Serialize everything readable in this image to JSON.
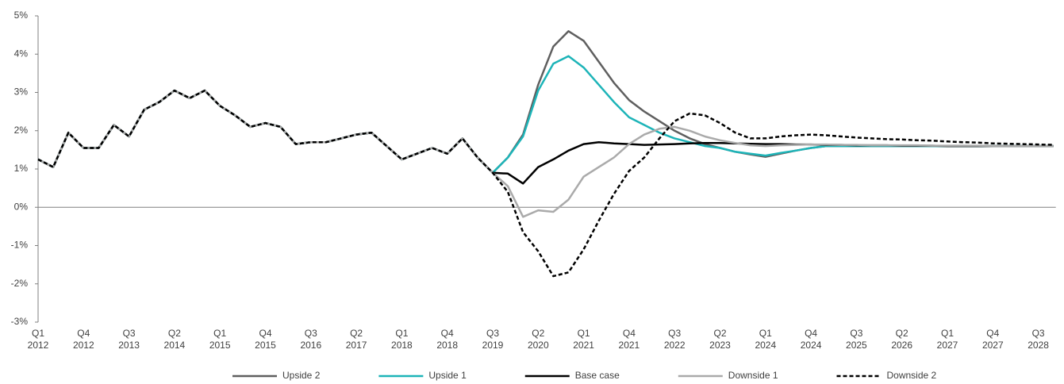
{
  "chart_data": {
    "type": "line",
    "categories": [
      "Q1 2012",
      null,
      null,
      "Q4 2012",
      null,
      null,
      "Q3 2013",
      null,
      null,
      "Q2 2014",
      null,
      null,
      "Q1 2015",
      null,
      null,
      "Q4 2015",
      null,
      null,
      "Q3 2016",
      null,
      null,
      "Q2 2017",
      null,
      null,
      "Q1 2018",
      null,
      null,
      "Q4 2018",
      null,
      null,
      "Q3 2019",
      null,
      null,
      "Q2 2020",
      null,
      null,
      "Q1 2021",
      null,
      null,
      "Q4 2021",
      null,
      null,
      "Q3 2022",
      null,
      null,
      "Q2 2023",
      null,
      null,
      "Q1 2024",
      null,
      null,
      "Q4 2024",
      null,
      null,
      "Q3 2025",
      null,
      null,
      "Q2 2026",
      null,
      null,
      "Q1 2027",
      null,
      null,
      "Q4 2027",
      null,
      null,
      "Q3 2028",
      null
    ],
    "ylim": [
      -3,
      5
    ],
    "yticks": [
      {
        "value": -3,
        "label": "-3%"
      },
      {
        "value": -2,
        "label": "-2%"
      },
      {
        "value": -1,
        "label": "-1%"
      },
      {
        "value": 0,
        "label": "0%"
      },
      {
        "value": 1,
        "label": "1%"
      },
      {
        "value": 2,
        "label": "2%"
      },
      {
        "value": 3,
        "label": "3%"
      },
      {
        "value": 4,
        "label": "4%"
      },
      {
        "value": 5,
        "label": "5%"
      }
    ],
    "legend": "bottom",
    "series": [
      {
        "name": "Upside 2",
        "color": "#5f5f5f",
        "style": "solid",
        "values": [
          1.25,
          1.05,
          1.95,
          1.55,
          1.55,
          2.15,
          1.85,
          2.55,
          2.75,
          3.05,
          2.85,
          3.05,
          2.65,
          2.4,
          2.1,
          2.2,
          2.1,
          1.65,
          1.7,
          1.7,
          1.8,
          1.9,
          1.95,
          1.6,
          1.25,
          1.4,
          1.55,
          1.4,
          1.8,
          1.3,
          0.9,
          1.3,
          1.9,
          3.2,
          4.2,
          4.6,
          4.35,
          3.8,
          3.25,
          2.8,
          2.5,
          2.25,
          2.0,
          1.8,
          1.65,
          1.55,
          1.45,
          1.38,
          1.32,
          1.4,
          1.48,
          1.55,
          1.6,
          1.6,
          1.6,
          1.6,
          1.6,
          1.6,
          1.6,
          1.6,
          1.6,
          1.6,
          1.6,
          1.6,
          1.6,
          1.6,
          1.6,
          1.6
        ]
      },
      {
        "name": "Upside 1",
        "color": "#1db4b8",
        "style": "solid",
        "values": [
          1.25,
          1.05,
          1.95,
          1.55,
          1.55,
          2.15,
          1.85,
          2.55,
          2.75,
          3.05,
          2.85,
          3.05,
          2.65,
          2.4,
          2.1,
          2.2,
          2.1,
          1.65,
          1.7,
          1.7,
          1.8,
          1.9,
          1.95,
          1.6,
          1.25,
          1.4,
          1.55,
          1.4,
          1.8,
          1.3,
          0.9,
          1.3,
          1.85,
          3.05,
          3.75,
          3.95,
          3.65,
          3.2,
          2.75,
          2.35,
          2.15,
          1.95,
          1.8,
          1.7,
          1.6,
          1.55,
          1.45,
          1.4,
          1.35,
          1.42,
          1.48,
          1.55,
          1.6,
          1.6,
          1.6,
          1.6,
          1.6,
          1.6,
          1.6,
          1.6,
          1.6,
          1.6,
          1.6,
          1.6,
          1.6,
          1.6,
          1.6,
          1.6
        ]
      },
      {
        "name": "Base case",
        "color": "#000000",
        "style": "solid",
        "values": [
          1.25,
          1.05,
          1.95,
          1.55,
          1.55,
          2.15,
          1.85,
          2.55,
          2.75,
          3.05,
          2.85,
          3.05,
          2.65,
          2.4,
          2.1,
          2.2,
          2.1,
          1.65,
          1.7,
          1.7,
          1.8,
          1.9,
          1.95,
          1.6,
          1.25,
          1.4,
          1.55,
          1.4,
          1.8,
          1.3,
          0.9,
          0.88,
          0.62,
          1.05,
          1.25,
          1.48,
          1.65,
          1.7,
          1.67,
          1.65,
          1.63,
          1.64,
          1.65,
          1.67,
          1.68,
          1.68,
          1.67,
          1.66,
          1.65,
          1.65,
          1.64,
          1.64,
          1.63,
          1.63,
          1.62,
          1.62,
          1.62,
          1.61,
          1.61,
          1.61,
          1.6,
          1.6,
          1.6,
          1.6,
          1.6,
          1.6,
          1.6,
          1.6
        ]
      },
      {
        "name": "Downside 1",
        "color": "#aaaaaa",
        "style": "solid",
        "values": [
          1.25,
          1.05,
          1.95,
          1.55,
          1.55,
          2.15,
          1.85,
          2.55,
          2.75,
          3.05,
          2.85,
          3.05,
          2.65,
          2.4,
          2.1,
          2.2,
          2.1,
          1.65,
          1.7,
          1.7,
          1.8,
          1.9,
          1.95,
          1.6,
          1.25,
          1.4,
          1.55,
          1.4,
          1.8,
          1.3,
          0.9,
          0.55,
          -0.25,
          -0.08,
          -0.12,
          0.2,
          0.8,
          1.05,
          1.3,
          1.65,
          1.9,
          2.05,
          2.1,
          2.0,
          1.85,
          1.75,
          1.68,
          1.62,
          1.6,
          1.62,
          1.63,
          1.64,
          1.64,
          1.63,
          1.63,
          1.62,
          1.62,
          1.62,
          1.62,
          1.61,
          1.61,
          1.61,
          1.61,
          1.6,
          1.6,
          1.6,
          1.6,
          1.6
        ]
      },
      {
        "name": "Downside 2",
        "color": "#000000",
        "style": "dashed",
        "values": [
          1.25,
          1.05,
          1.95,
          1.55,
          1.55,
          2.15,
          1.85,
          2.55,
          2.75,
          3.05,
          2.85,
          3.05,
          2.65,
          2.4,
          2.1,
          2.2,
          2.1,
          1.65,
          1.7,
          1.7,
          1.8,
          1.9,
          1.95,
          1.6,
          1.25,
          1.4,
          1.55,
          1.4,
          1.8,
          1.3,
          0.9,
          0.4,
          -0.65,
          -1.15,
          -1.8,
          -1.7,
          -1.1,
          -0.35,
          0.35,
          0.95,
          1.3,
          1.8,
          2.25,
          2.45,
          2.4,
          2.2,
          1.95,
          1.8,
          1.8,
          1.85,
          1.88,
          1.9,
          1.88,
          1.85,
          1.82,
          1.8,
          1.78,
          1.77,
          1.75,
          1.74,
          1.72,
          1.7,
          1.69,
          1.67,
          1.66,
          1.65,
          1.64,
          1.63
        ]
      }
    ]
  }
}
